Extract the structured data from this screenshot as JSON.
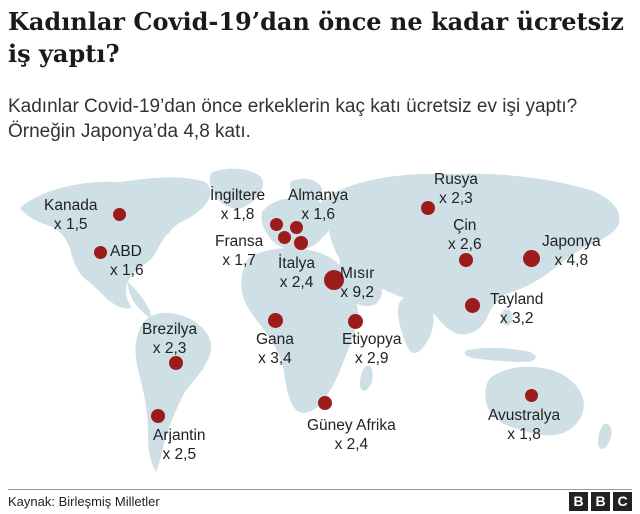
{
  "title": "Kadınlar Covid-19’dan önce ne kadar ücretsiz iş yaptı?",
  "subtitle": "Kadınlar Covid-19’dan önce erkeklerin kaç katı ücretsiz ev işi yaptı? Örneğin Japonya’da 4,8 katı.",
  "source": "Kaynak: Birleşmiş Milletler",
  "logo": [
    "B",
    "B",
    "C"
  ],
  "colors": {
    "marker": "#9c1b1b",
    "land": "#cfdfe6",
    "text": "#222222"
  },
  "countries": [
    {
      "name": "Kanada",
      "value": "x 1,5",
      "ratio": 1.5
    },
    {
      "name": "ABD",
      "value": "x 1,6",
      "ratio": 1.6
    },
    {
      "name": "İngiltere",
      "value": "x 1,8",
      "ratio": 1.8
    },
    {
      "name": "Almanya",
      "value": "x 1,6",
      "ratio": 1.6
    },
    {
      "name": "Fransa",
      "value": "x 1,7",
      "ratio": 1.7
    },
    {
      "name": "İtalya",
      "value": "x 2,4",
      "ratio": 2.4
    },
    {
      "name": "Rusya",
      "value": "x 2,3",
      "ratio": 2.3
    },
    {
      "name": "Çin",
      "value": "x 2,6",
      "ratio": 2.6
    },
    {
      "name": "Japonya",
      "value": "x 4,8",
      "ratio": 4.8
    },
    {
      "name": "Mısır",
      "value": "x 9,2",
      "ratio": 9.2
    },
    {
      "name": "Tayland",
      "value": "x 3,2",
      "ratio": 3.2
    },
    {
      "name": "Brezilya",
      "value": "x 2,3",
      "ratio": 2.3
    },
    {
      "name": "Gana",
      "value": "x 3,4",
      "ratio": 3.4
    },
    {
      "name": "Etiyopya",
      "value": "x 2,9",
      "ratio": 2.9
    },
    {
      "name": "Güney Afrika",
      "value": "x 2,4",
      "ratio": 2.4
    },
    {
      "name": "Arjantin",
      "value": "x 2,5",
      "ratio": 2.5
    },
    {
      "name": "Avustralya",
      "value": "x 1,8",
      "ratio": 1.8
    }
  ]
}
